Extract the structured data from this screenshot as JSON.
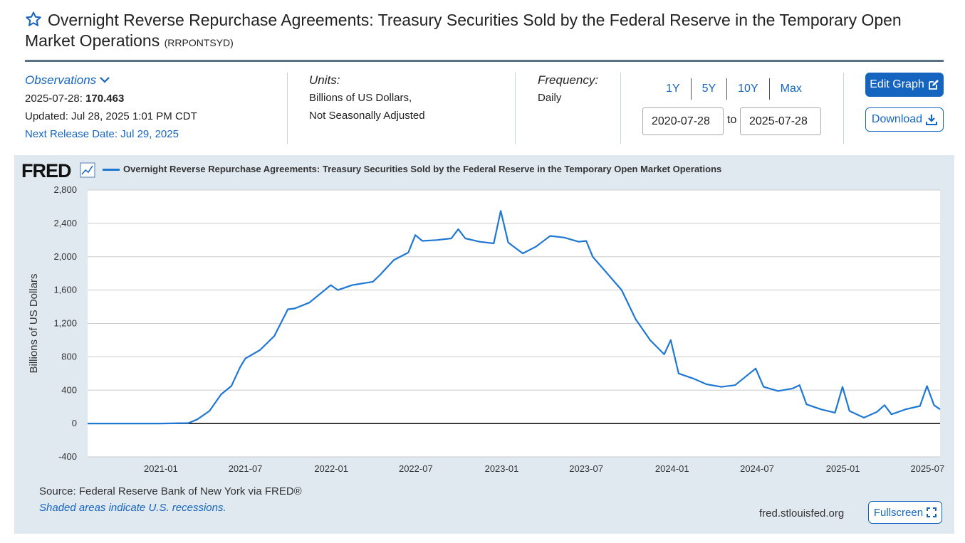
{
  "header": {
    "title": "Overnight Reverse Repurchase Agreements: Treasury Securities Sold by the Federal Reserve in the Temporary Open Market Operations",
    "series_id": "(RRPONTSYD)",
    "star_icon": "star-outline-icon"
  },
  "observations": {
    "label": "Observations",
    "date": "2025-07-28:",
    "value": "170.463",
    "updated": "Updated: Jul 28, 2025 1:01 PM CDT",
    "next_release": "Next Release Date: Jul 29, 2025"
  },
  "units": {
    "label": "Units:",
    "line1": "Billions of US Dollars,",
    "line2": "Not Seasonally Adjusted"
  },
  "frequency": {
    "label": "Frequency:",
    "value": "Daily"
  },
  "range": {
    "links": [
      "1Y",
      "5Y",
      "10Y",
      "Max"
    ],
    "start": "2020-07-28",
    "to": "to",
    "end": "2025-07-28"
  },
  "buttons": {
    "edit": "Edit Graph",
    "download": "Download",
    "fullscreen": "Fullscreen"
  },
  "graph": {
    "logo": "FRED",
    "legend": "Overnight Reverse Repurchase Agreements: Treasury Securities Sold by the Federal Reserve in the Temporary Open Market Operations",
    "source": "Source: Federal Reserve Bank of New York via FRED®",
    "recessions": "Shaded areas indicate U.S. recessions.",
    "site": "fred.stlouisfed.org"
  },
  "colors": {
    "accent": "#1565c0",
    "series": "#1f77d4",
    "panel": "#e1e9f0"
  },
  "chart_data": {
    "type": "line",
    "ylabel": "Billions of US Dollars",
    "ylim": [
      -400,
      2800
    ],
    "yticks": [
      -400,
      0,
      400,
      800,
      1200,
      1600,
      2000,
      2400,
      2800
    ],
    "ytick_labels": [
      "-400",
      "0",
      "400",
      "800",
      "1,200",
      "1,600",
      "2,000",
      "2,400",
      "2,800"
    ],
    "xlim": [
      "2020-07-28",
      "2025-07-28"
    ],
    "xticks": [
      "2021-01",
      "2021-07",
      "2022-01",
      "2022-07",
      "2023-01",
      "2023-07",
      "2024-01",
      "2024-07",
      "2025-01",
      "2025-07"
    ],
    "grid": true,
    "series": [
      {
        "name": "Overnight Reverse Repurchase Agreements: Treasury Securities Sold by the Federal Reserve in the Temporary Open Market Operations",
        "x": [
          "2020-07-28",
          "2020-10-01",
          "2021-01-01",
          "2021-03-01",
          "2021-03-20",
          "2021-04-15",
          "2021-05-10",
          "2021-06-01",
          "2021-06-20",
          "2021-07-01",
          "2021-08-01",
          "2021-09-01",
          "2021-09-30",
          "2021-10-15",
          "2021-11-15",
          "2021-12-31",
          "2022-01-15",
          "2022-02-15",
          "2022-03-31",
          "2022-04-15",
          "2022-05-15",
          "2022-06-15",
          "2022-06-30",
          "2022-07-15",
          "2022-08-15",
          "2022-09-15",
          "2022-09-30",
          "2022-10-15",
          "2022-11-15",
          "2022-12-15",
          "2022-12-30",
          "2023-01-15",
          "2023-02-15",
          "2023-03-15",
          "2023-04-15",
          "2023-05-15",
          "2023-06-15",
          "2023-07-01",
          "2023-07-15",
          "2023-08-15",
          "2023-09-15",
          "2023-10-15",
          "2023-11-15",
          "2023-12-15",
          "2023-12-29",
          "2024-01-15",
          "2024-02-15",
          "2024-03-15",
          "2024-04-15",
          "2024-05-15",
          "2024-06-28",
          "2024-07-15",
          "2024-08-15",
          "2024-09-15",
          "2024-09-30",
          "2024-10-15",
          "2024-11-15",
          "2024-12-15",
          "2024-12-31",
          "2025-01-15",
          "2025-02-15",
          "2025-03-15",
          "2025-03-31",
          "2025-04-15",
          "2025-05-15",
          "2025-06-15",
          "2025-06-30",
          "2025-07-15",
          "2025-07-28"
        ],
        "values": [
          0,
          0,
          0,
          5,
          50,
          150,
          350,
          450,
          680,
          780,
          880,
          1050,
          1370,
          1380,
          1450,
          1660,
          1600,
          1660,
          1700,
          1780,
          1960,
          2050,
          2260,
          2190,
          2200,
          2220,
          2330,
          2220,
          2180,
          2160,
          2550,
          2170,
          2040,
          2120,
          2250,
          2230,
          2180,
          2190,
          2000,
          1800,
          1600,
          1250,
          1000,
          830,
          1000,
          600,
          540,
          470,
          440,
          460,
          660,
          440,
          390,
          420,
          460,
          230,
          170,
          130,
          440,
          150,
          70,
          140,
          220,
          110,
          170,
          210,
          450,
          220,
          170
        ]
      }
    ]
  }
}
